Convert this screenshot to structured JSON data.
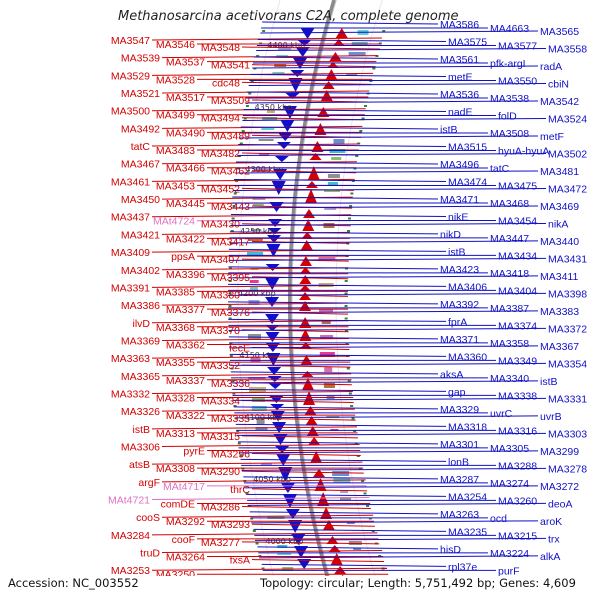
{
  "title": "Methanosarcina acetivorans C2A, complete genome",
  "footer": {
    "accession": "Accession: NC_003552",
    "meta": "Topology: circular; Length: 5,751,492 bp; Genes: 4,609"
  },
  "colors": {
    "negative_strand": "#d40000",
    "positive_strand": "#1010c8",
    "rna": "#e070c0",
    "backbone": "#8a8a8a"
  },
  "ruler_labels": [
    "4400 kbp",
    "4350 kbp",
    "4300 kbp",
    "4250 kbp",
    "4200 kbp",
    "4150 kbp",
    "4100 kbp",
    "4050 kbp",
    "4000 kbp",
    "3950 kbp"
  ],
  "left_labels": [
    {
      "t": "MA3547",
      "k": "neg"
    },
    {
      "t": "MA3546",
      "k": "neg"
    },
    {
      "t": "MA3548",
      "k": "neg"
    },
    {
      "t": "MA3539",
      "k": "neg"
    },
    {
      "t": "MA3537",
      "k": "neg"
    },
    {
      "t": "MA3541",
      "k": "neg"
    },
    {
      "t": "MA3529",
      "k": "neg"
    },
    {
      "t": "MA3528",
      "k": "neg"
    },
    {
      "t": "cdc48",
      "k": "neg"
    },
    {
      "t": "MA3521",
      "k": "neg"
    },
    {
      "t": "MA3517",
      "k": "neg"
    },
    {
      "t": "MA3509",
      "k": "neg"
    },
    {
      "t": "MA3500",
      "k": "neg"
    },
    {
      "t": "MA3499",
      "k": "neg"
    },
    {
      "t": "MA3494",
      "k": "neg"
    },
    {
      "t": "MA3492",
      "k": "neg"
    },
    {
      "t": "MA3490",
      "k": "neg"
    },
    {
      "t": "MA3489",
      "k": "neg"
    },
    {
      "t": "tatC",
      "k": "neg"
    },
    {
      "t": "MA3483",
      "k": "neg"
    },
    {
      "t": "MA3482",
      "k": "neg"
    },
    {
      "t": "MA3467",
      "k": "neg"
    },
    {
      "t": "MA3466",
      "k": "neg"
    },
    {
      "t": "MA3462",
      "k": "neg"
    },
    {
      "t": "MA3461",
      "k": "neg"
    },
    {
      "t": "MA3453",
      "k": "neg"
    },
    {
      "t": "MA3452",
      "k": "neg"
    },
    {
      "t": "MA3450",
      "k": "neg"
    },
    {
      "t": "MA3445",
      "k": "neg"
    },
    {
      "t": "MA3443",
      "k": "neg"
    },
    {
      "t": "MA3437",
      "k": "neg"
    },
    {
      "t": "MAt4724",
      "k": "rna"
    },
    {
      "t": "MA3430",
      "k": "neg"
    },
    {
      "t": "MA3421",
      "k": "neg"
    },
    {
      "t": "MA3422",
      "k": "neg"
    },
    {
      "t": "MA3417",
      "k": "neg"
    },
    {
      "t": "MA3409",
      "k": "neg"
    },
    {
      "t": "ppsA",
      "k": "neg"
    },
    {
      "t": "MA3407",
      "k": "neg"
    },
    {
      "t": "MA3402",
      "k": "neg"
    },
    {
      "t": "MA3396",
      "k": "neg"
    },
    {
      "t": "MA3395",
      "k": "neg"
    },
    {
      "t": "MA3391",
      "k": "neg"
    },
    {
      "t": "MA3385",
      "k": "neg"
    },
    {
      "t": "MA3380",
      "k": "neg"
    },
    {
      "t": "MA3386",
      "k": "neg"
    },
    {
      "t": "MA3377",
      "k": "neg"
    },
    {
      "t": "MA3376",
      "k": "neg"
    },
    {
      "t": "ilvD",
      "k": "neg"
    },
    {
      "t": "MA3368",
      "k": "neg"
    },
    {
      "t": "MA3370",
      "k": "neg"
    },
    {
      "t": "MA3369",
      "k": "neg"
    },
    {
      "t": "MA3362",
      "k": "neg"
    },
    {
      "t": "fecE",
      "k": "neg"
    },
    {
      "t": "MA3363",
      "k": "neg"
    },
    {
      "t": "MA3355",
      "k": "neg"
    },
    {
      "t": "MA3352",
      "k": "neg"
    },
    {
      "t": "MA3365",
      "k": "neg"
    },
    {
      "t": "MA3337",
      "k": "neg"
    },
    {
      "t": "MA3336",
      "k": "neg"
    },
    {
      "t": "MA3332",
      "k": "neg"
    },
    {
      "t": "MA3328",
      "k": "neg"
    },
    {
      "t": "MA3334",
      "k": "neg"
    },
    {
      "t": "MA3326",
      "k": "neg"
    },
    {
      "t": "MA3322",
      "k": "neg"
    },
    {
      "t": "MA3335",
      "k": "neg"
    },
    {
      "t": "istB",
      "k": "neg"
    },
    {
      "t": "MA3313",
      "k": "neg"
    },
    {
      "t": "MA3315",
      "k": "neg"
    },
    {
      "t": "MA3306",
      "k": "neg"
    },
    {
      "t": "pyrE",
      "k": "neg"
    },
    {
      "t": "MA3296",
      "k": "neg"
    },
    {
      "t": "atsB",
      "k": "neg"
    },
    {
      "t": "MA3308",
      "k": "neg"
    },
    {
      "t": "MA3290",
      "k": "neg"
    },
    {
      "t": "argF",
      "k": "neg"
    },
    {
      "t": "MAt4717",
      "k": "rna"
    },
    {
      "t": "thrC",
      "k": "neg"
    },
    {
      "t": "MAt4721",
      "k": "rna"
    },
    {
      "t": "comDE",
      "k": "neg"
    },
    {
      "t": "MA3286",
      "k": "neg"
    },
    {
      "t": "cooS",
      "k": "neg"
    },
    {
      "t": "MA3292",
      "k": "neg"
    },
    {
      "t": "MA3293",
      "k": "neg"
    },
    {
      "t": "MA3284",
      "k": "neg"
    },
    {
      "t": "cooF",
      "k": "neg"
    },
    {
      "t": "MA3277",
      "k": "neg"
    },
    {
      "t": "truD",
      "k": "neg"
    },
    {
      "t": "MA3264",
      "k": "neg"
    },
    {
      "t": "fxsA",
      "k": "neg"
    },
    {
      "t": "MA3253",
      "k": "neg"
    },
    {
      "t": "MA3250",
      "k": "neg"
    }
  ],
  "right_labels": [
    {
      "t": "MA3586"
    },
    {
      "t": "MA4663"
    },
    {
      "t": "MA3565"
    },
    {
      "t": "MA3575"
    },
    {
      "t": "MA3577"
    },
    {
      "t": "MA3558"
    },
    {
      "t": "MA3561"
    },
    {
      "t": "pfk-argI"
    },
    {
      "t": "radA"
    },
    {
      "t": "metE"
    },
    {
      "t": "MA3550"
    },
    {
      "t": "cbiN"
    },
    {
      "t": "MA3536"
    },
    {
      "t": "MA3538"
    },
    {
      "t": "MA3542"
    },
    {
      "t": "nadE"
    },
    {
      "t": "folD"
    },
    {
      "t": "MA3524"
    },
    {
      "t": "istB"
    },
    {
      "t": "MA3508"
    },
    {
      "t": "metF"
    },
    {
      "t": "MA3515"
    },
    {
      "t": "hyuA-hyuA"
    },
    {
      "t": "MA3502"
    },
    {
      "t": "MA3496"
    },
    {
      "t": "tatC"
    },
    {
      "t": "MA3481"
    },
    {
      "t": "MA3474"
    },
    {
      "t": "MA3475"
    },
    {
      "t": "MA3472"
    },
    {
      "t": "MA3471"
    },
    {
      "t": "MA3468"
    },
    {
      "t": "MA3469"
    },
    {
      "t": "nikE"
    },
    {
      "t": "MA3454"
    },
    {
      "t": "nikA"
    },
    {
      "t": "nikD"
    },
    {
      "t": "MA3447"
    },
    {
      "t": "MA3440"
    },
    {
      "t": "istB"
    },
    {
      "t": "MA3434"
    },
    {
      "t": "MA3431"
    },
    {
      "t": "MA3423"
    },
    {
      "t": "MA3418"
    },
    {
      "t": "MA3411"
    },
    {
      "t": "MA3406"
    },
    {
      "t": "MA3404"
    },
    {
      "t": "MA3398"
    },
    {
      "t": "MA3392"
    },
    {
      "t": "MA3387"
    },
    {
      "t": "MA3383"
    },
    {
      "t": "fprA"
    },
    {
      "t": "MA3374"
    },
    {
      "t": "MA3372"
    },
    {
      "t": "MA3371"
    },
    {
      "t": "MA3358"
    },
    {
      "t": "MA3367"
    },
    {
      "t": "MA3360"
    },
    {
      "t": "MA3349"
    },
    {
      "t": "MA3354"
    },
    {
      "t": "aksA"
    },
    {
      "t": "MA3340"
    },
    {
      "t": "istB"
    },
    {
      "t": "gap"
    },
    {
      "t": "MA3338"
    },
    {
      "t": "MA3331"
    },
    {
      "t": "MA3329"
    },
    {
      "t": "uvrC"
    },
    {
      "t": "uvrB"
    },
    {
      "t": "MA3318"
    },
    {
      "t": "MA3316"
    },
    {
      "t": "MA3303"
    },
    {
      "t": "MA3301"
    },
    {
      "t": "MA3305"
    },
    {
      "t": "MA3299"
    },
    {
      "t": "lonB"
    },
    {
      "t": "MA3288"
    },
    {
      "t": "MA3278"
    },
    {
      "t": "MA3287"
    },
    {
      "t": "MA3274"
    },
    {
      "t": "MA3272"
    },
    {
      "t": "MA3254"
    },
    {
      "t": "MA3260"
    },
    {
      "t": "deoA"
    },
    {
      "t": "MA3263"
    },
    {
      "t": "ocd"
    },
    {
      "t": "aroK"
    },
    {
      "t": "MA3235"
    },
    {
      "t": "MA3215"
    },
    {
      "t": "trx"
    },
    {
      "t": "hisD"
    },
    {
      "t": "MA3224"
    },
    {
      "t": "alkA"
    },
    {
      "t": "rpl37e"
    },
    {
      "t": "purF"
    }
  ]
}
